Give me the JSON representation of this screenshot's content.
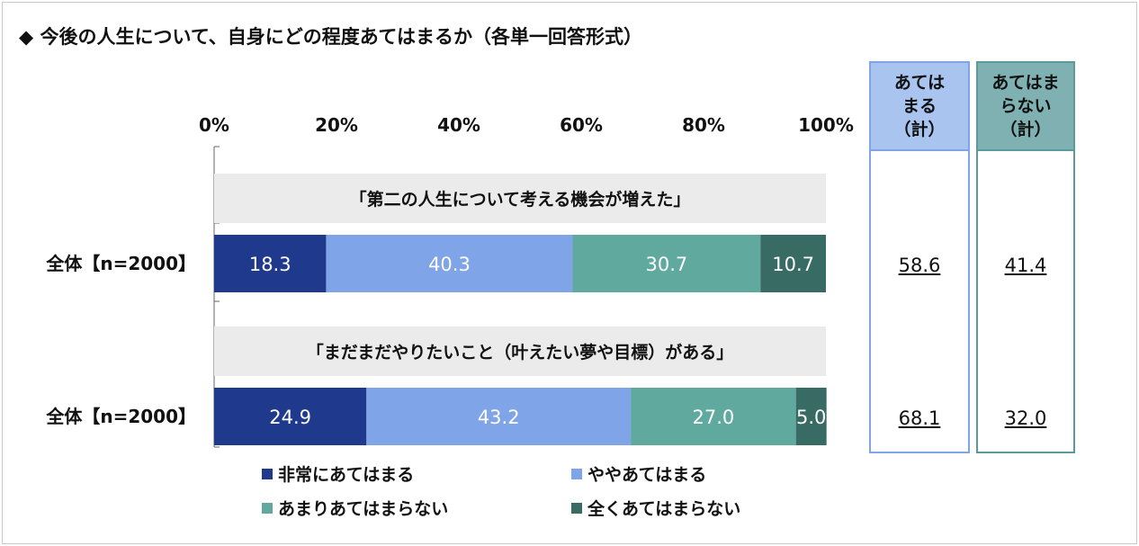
{
  "title": "◆ 今後の人生について、自身にどの程度あてはまるか（各単一回答形式）",
  "colors": {
    "very": "#1f3a8c",
    "somewhat": "#7fa5e8",
    "not_much": "#5fa99e",
    "not_at_all": "#376b64",
    "question_band": "#ebebeb",
    "totals_agree_border": "#7fa5e8",
    "totals_agree_header": "#a9c4ef",
    "totals_disagree_border": "#5a9a9c",
    "totals_disagree_header": "#7fb0b2"
  },
  "chart_data": {
    "type": "bar",
    "orientation": "horizontal-stacked-100",
    "x_ticks": [
      "0%",
      "20%",
      "40%",
      "60%",
      "80%",
      "100%"
    ],
    "xlim": [
      0,
      100
    ],
    "legend": [
      {
        "name": "非常にあてはまる",
        "color": "#1f3a8c"
      },
      {
        "name": "ややあてはまる",
        "color": "#7fa5e8"
      },
      {
        "name": "あまりあてはまらない",
        "color": "#5fa99e"
      },
      {
        "name": "全くあてはまらない",
        "color": "#376b64"
      }
    ],
    "legend_position": "bottom",
    "questions": [
      {
        "question": "「第二の人生について考える機会が増えた」",
        "row_label": "全体【n=2000】",
        "values": [
          18.3,
          40.3,
          30.7,
          10.7
        ],
        "labels": [
          "18.3",
          "40.3",
          "30.7",
          "10.7"
        ],
        "total_agree": "58.6",
        "total_disagree": "41.4"
      },
      {
        "question": "「まだまだやりたいこと（叶えたい夢や目標）がある」",
        "row_label": "全体【n=2000】",
        "values": [
          24.9,
          43.2,
          27.0,
          5.0
        ],
        "labels": [
          "24.9",
          "43.2",
          "27.0",
          "5.0"
        ],
        "total_agree": "68.1",
        "total_disagree": "32.0"
      }
    ]
  },
  "totals": {
    "agree_header": "あては\nまる\n（計）",
    "disagree_header": "あてはま\nらない\n（計）"
  }
}
